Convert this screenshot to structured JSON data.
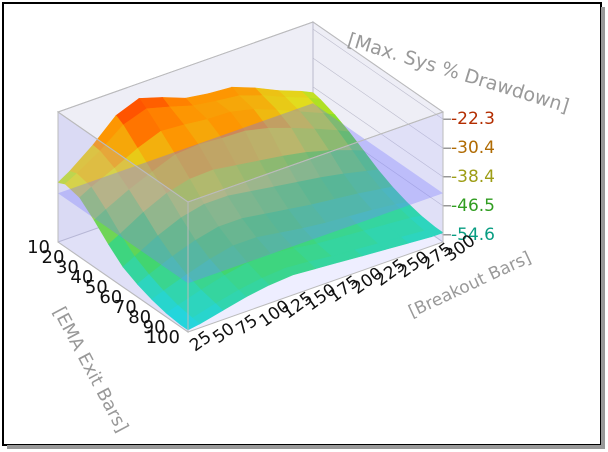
{
  "chart_data": {
    "type": "surface",
    "x_label": "[EMA Exit Bars]",
    "y_label": "[Breakout Bars]",
    "z_label": "[Max. Sys % Drawdown]",
    "x_categories": [
      "10",
      "20",
      "30",
      "40",
      "50",
      "60",
      "70",
      "80",
      "90",
      "100"
    ],
    "y_categories": [
      "25",
      "50",
      "75",
      "100",
      "125",
      "150",
      "175",
      "200",
      "225",
      "250",
      "275",
      "300"
    ],
    "zlim": [
      -56.6,
      -20.3
    ],
    "zticks": [
      -22.3,
      -30.4,
      -38.4,
      -46.5,
      -54.6
    ],
    "colorscale": [
      "#00e0e0",
      "#30e030",
      "#e0e020",
      "#ff9000",
      "#ff2a00"
    ],
    "reference_plane": {
      "z": -43,
      "color": "#7070ff"
    },
    "values": [
      [
        -40,
        -36,
        -30,
        -24,
        -25,
        -28,
        -30,
        -30,
        -31,
        -35,
        -37,
        -40
      ],
      [
        -38,
        -35,
        -32,
        -27,
        -28,
        -30,
        -31,
        -32,
        -33,
        -36,
        -38,
        -41
      ],
      [
        -42,
        -38,
        -36,
        -33,
        -30,
        -32,
        -30,
        -31,
        -34,
        -37,
        -40,
        -43
      ],
      [
        -45,
        -42,
        -38,
        -36,
        -34,
        -35,
        -36,
        -37,
        -38,
        -40,
        -42,
        -45
      ],
      [
        -50,
        -46,
        -42,
        -40,
        -39,
        -40,
        -41,
        -42,
        -43,
        -44,
        -46,
        -48
      ],
      [
        -52,
        -49,
        -46,
        -44,
        -43,
        -44,
        -45,
        -46,
        -47,
        -48,
        -49,
        -50
      ],
      [
        -54,
        -51,
        -49,
        -47,
        -46,
        -47,
        -48,
        -49,
        -50,
        -50,
        -51,
        -52
      ],
      [
        -55,
        -53,
        -51,
        -49,
        -48,
        -49,
        -50,
        -51,
        -51,
        -52,
        -52,
        -53
      ],
      [
        -56,
        -54,
        -52,
        -51,
        -50,
        -50,
        -51,
        -52,
        -52,
        -53,
        -53,
        -54
      ],
      [
        -56,
        -55,
        -53,
        -52,
        -51,
        -51,
        -52,
        -52,
        -53,
        -53,
        -54,
        -54
      ]
    ]
  }
}
